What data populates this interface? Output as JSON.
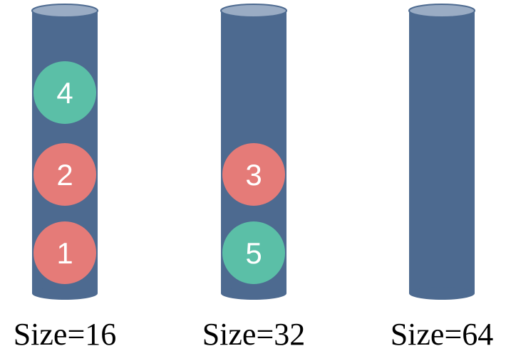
{
  "colors": {
    "tube_body": "#4d6a90",
    "tube_top": "#9aacc4",
    "tube_top_stroke": "#4d6a90",
    "ball_red": "#e57b78",
    "ball_green": "#5bbfa7",
    "ball_text": "#ffffff",
    "label_text": "#000000"
  },
  "tubes": [
    {
      "label": "Size=16",
      "balls": [
        {
          "number": "4",
          "color": "green"
        },
        {
          "number": "2",
          "color": "red"
        },
        {
          "number": "1",
          "color": "red"
        }
      ]
    },
    {
      "label": "Size=32",
      "balls": [
        {
          "number": "3",
          "color": "red"
        },
        {
          "number": "5",
          "color": "green"
        }
      ]
    },
    {
      "label": "Size=64",
      "balls": []
    }
  ]
}
